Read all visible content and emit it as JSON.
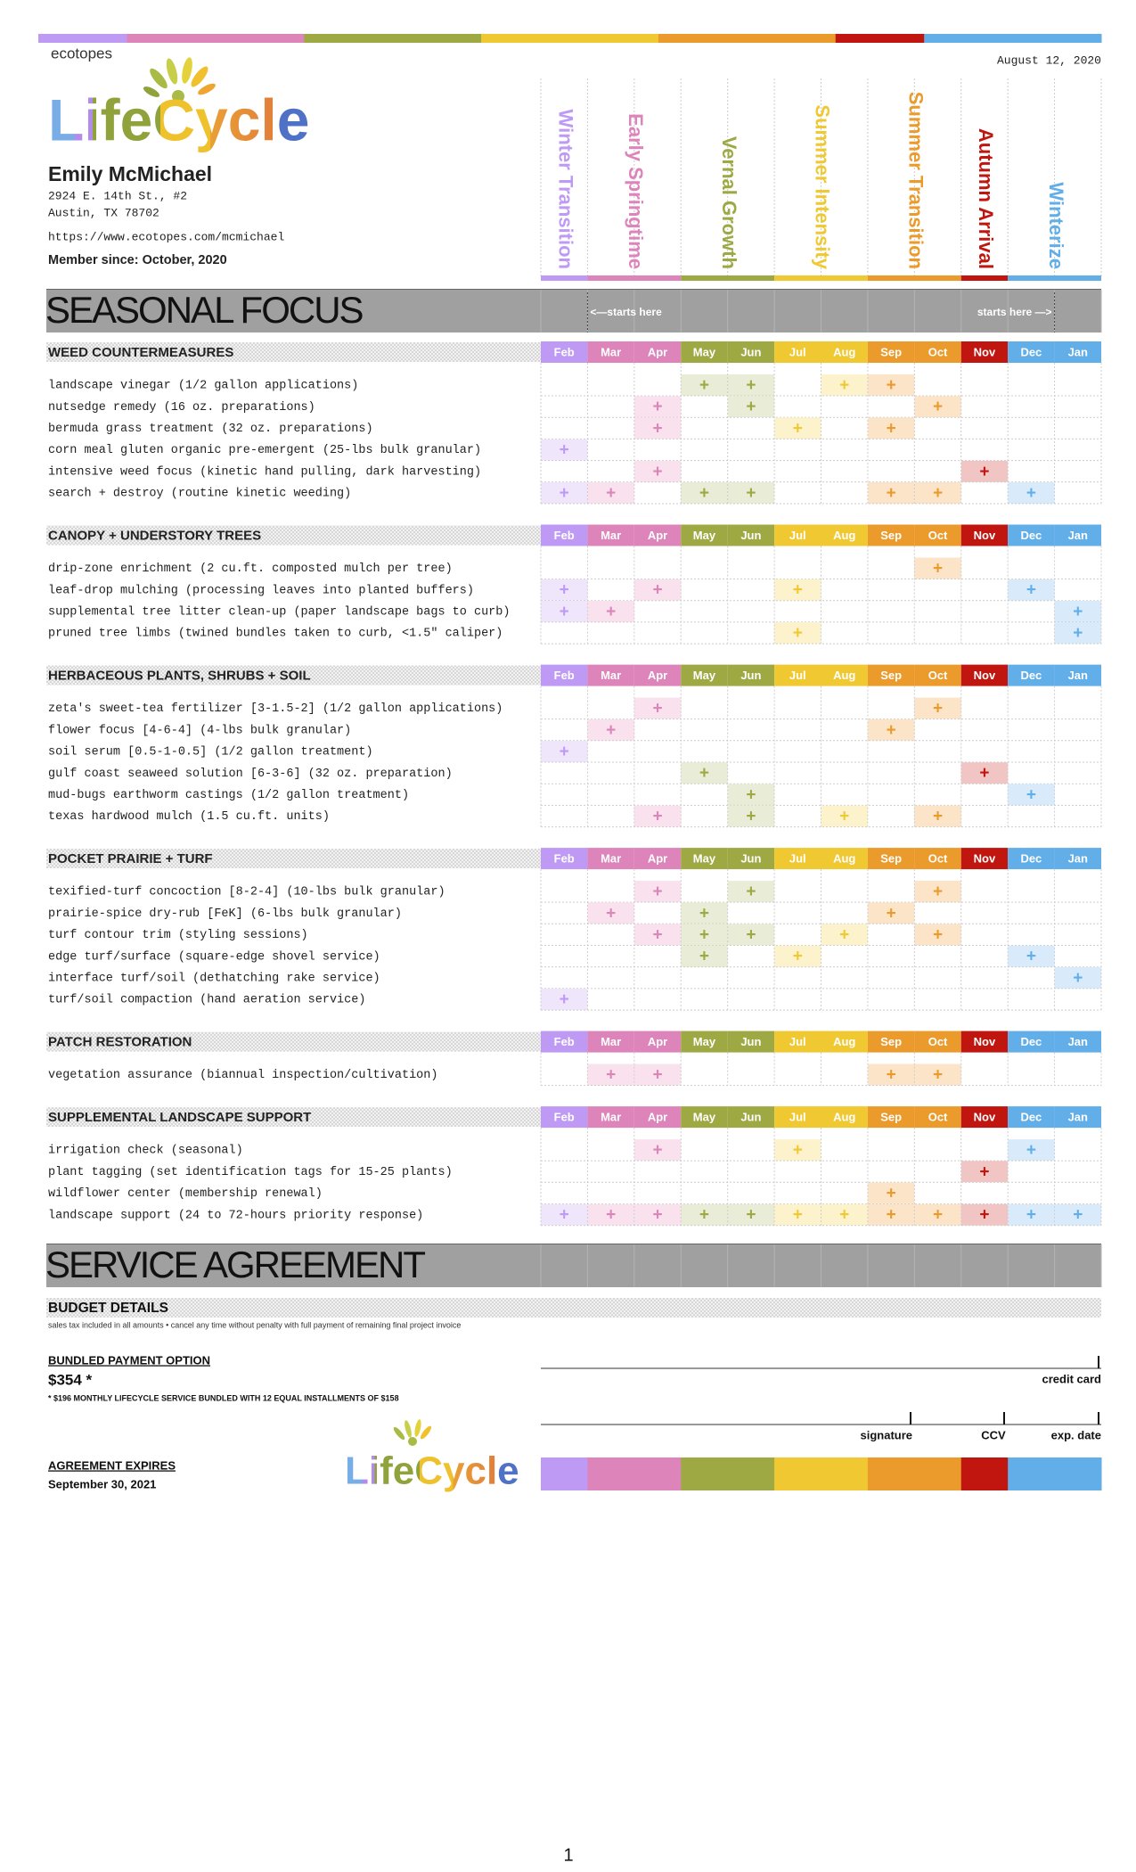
{
  "header": {
    "brand": "ecotopes",
    "logo": "LifeCycle",
    "date": "August 12, 2020",
    "name": "Emily McMichael",
    "address": [
      "2924 E. 14th St., #2",
      "Austin, TX 78702"
    ],
    "url": "https://www.ecotopes.com/mcmichael",
    "member_since": "Member since: October, 2020"
  },
  "months": [
    {
      "label": "Feb",
      "color": "#bf9af5",
      "tint": "#efe6fc"
    },
    {
      "label": "Mar",
      "color": "#dd84bb",
      "tint": "#f9e1ee"
    },
    {
      "label": "Apr",
      "color": "#dd84bb",
      "tint": "#f9e1ee"
    },
    {
      "label": "May",
      "color": "#9ea944",
      "tint": "#e9ecd6"
    },
    {
      "label": "Jun",
      "color": "#9ea944",
      "tint": "#e9ecd6"
    },
    {
      "label": "Jul",
      "color": "#f0c832",
      "tint": "#fcf2cc"
    },
    {
      "label": "Aug",
      "color": "#f0c832",
      "tint": "#fcf2cc"
    },
    {
      "label": "Sep",
      "color": "#eb9a2c",
      "tint": "#fbe4c8"
    },
    {
      "label": "Oct",
      "color": "#eb9a2c",
      "tint": "#fbe4c8"
    },
    {
      "label": "Nov",
      "color": "#c0160f",
      "tint": "#f2c5c5"
    },
    {
      "label": "Dec",
      "color": "#62aee9",
      "tint": "#d9eafa"
    },
    {
      "label": "Jan",
      "color": "#62aee9",
      "tint": "#d9eafa"
    }
  ],
  "seasons": [
    {
      "label": "Winter Transition",
      "color": "#bf9af5"
    },
    {
      "label": "Early Springtime",
      "color": "#dd84bb"
    },
    {
      "label": "Vernal Growth",
      "color": "#9ea944"
    },
    {
      "label": "Summer Intensity",
      "color": "#f0c832"
    },
    {
      "label": "Summer Transition",
      "color": "#eb9a2c"
    },
    {
      "label": "Autumn Arrival",
      "color": "#c0160f"
    },
    {
      "label": "Winterize",
      "color": "#62aee9"
    }
  ],
  "focus": {
    "title": "SEASONAL FOCUS",
    "start_left": "<—starts here",
    "start_right": "starts here —>",
    "sections": [
      {
        "title": "WEED COUNTERMEASURES",
        "rows": [
          {
            "label": "landscape vinegar (1/2 gallon applications)",
            "cells": [
              null,
              null,
              null,
              "+",
              "+",
              null,
              "+",
              "+",
              null,
              null,
              null,
              null
            ]
          },
          {
            "label": "nutsedge remedy (16 oz. preparations)",
            "cells": [
              null,
              null,
              "+",
              null,
              "+",
              null,
              null,
              null,
              "+",
              null,
              null,
              null
            ]
          },
          {
            "label": "bermuda grass treatment (32 oz. preparations)",
            "cells": [
              null,
              null,
              "+",
              null,
              null,
              "+",
              null,
              "+",
              null,
              null,
              null,
              null
            ]
          },
          {
            "label": "corn meal gluten organic pre-emergent (25-lbs bulk granular)",
            "cells": [
              "+",
              null,
              null,
              null,
              null,
              null,
              null,
              null,
              null,
              null,
              null,
              null
            ]
          },
          {
            "label": "intensive weed focus (kinetic hand pulling, dark harvesting)",
            "cells": [
              null,
              null,
              "+",
              null,
              null,
              null,
              null,
              null,
              null,
              "+",
              null,
              null
            ]
          },
          {
            "label": "search + destroy (routine kinetic weeding)",
            "cells": [
              "+",
              "+",
              null,
              "+",
              "+",
              null,
              null,
              "+",
              "+",
              null,
              "+",
              null
            ]
          }
        ]
      },
      {
        "title": "CANOPY + UNDERSTORY TREES",
        "rows": [
          {
            "label": "drip-zone enrichment (2 cu.ft. composted mulch per tree)",
            "cells": [
              null,
              null,
              null,
              null,
              null,
              null,
              null,
              null,
              "+",
              null,
              null,
              null
            ]
          },
          {
            "label": "leaf-drop mulching (processing leaves into planted buffers)",
            "cells": [
              "+",
              null,
              "+",
              null,
              null,
              "+",
              null,
              null,
              null,
              null,
              "+",
              null
            ]
          },
          {
            "label": "supplemental tree litter clean-up (paper landscape bags to curb)",
            "cells": [
              "+",
              "+",
              null,
              null,
              null,
              null,
              null,
              null,
              null,
              null,
              null,
              "+"
            ]
          },
          {
            "label": "pruned tree limbs (twined bundles taken to curb, <1.5″ caliper)",
            "cells": [
              null,
              null,
              null,
              null,
              null,
              "+",
              null,
              null,
              null,
              null,
              null,
              "+"
            ]
          }
        ]
      },
      {
        "title": "HERBACEOUS PLANTS, SHRUBS + SOIL",
        "rows": [
          {
            "label": "zeta's sweet-tea fertilizer [3-1.5-2] (1/2 gallon applications)",
            "cells": [
              null,
              null,
              "+",
              null,
              null,
              null,
              null,
              null,
              "+",
              null,
              null,
              null
            ]
          },
          {
            "label": "flower focus [4-6-4] (4-lbs bulk granular)",
            "cells": [
              null,
              "+",
              null,
              null,
              null,
              null,
              null,
              "+",
              null,
              null,
              null,
              null
            ]
          },
          {
            "label": "soil serum [0.5-1-0.5] (1/2 gallon treatment)",
            "cells": [
              "+",
              null,
              null,
              null,
              null,
              null,
              null,
              null,
              null,
              null,
              null,
              null
            ]
          },
          {
            "label": "gulf coast seaweed solution [6-3-6] (32 oz. preparation)",
            "cells": [
              null,
              null,
              null,
              "+",
              null,
              null,
              null,
              null,
              null,
              "+",
              null,
              null
            ]
          },
          {
            "label": "mud-bugs earthworm castings (1/2 gallon treatment)",
            "cells": [
              null,
              null,
              null,
              null,
              "+",
              null,
              null,
              null,
              null,
              null,
              "+",
              null
            ]
          },
          {
            "label": "texas hardwood mulch (1.5 cu.ft. units)",
            "cells": [
              null,
              null,
              "+",
              null,
              "+",
              null,
              "+",
              null,
              "+",
              null,
              null,
              null
            ]
          }
        ]
      },
      {
        "title": "POCKET PRAIRIE + TURF",
        "rows": [
          {
            "label": "texified-turf concoction [8-2-4] (10-lbs bulk granular)",
            "cells": [
              null,
              null,
              "+",
              null,
              "+",
              null,
              null,
              null,
              "+",
              null,
              null,
              null
            ]
          },
          {
            "label": "prairie-spice dry-rub [FeK] (6-lbs bulk granular)",
            "cells": [
              null,
              "+",
              null,
              "+",
              null,
              null,
              null,
              "+",
              null,
              null,
              null,
              null
            ]
          },
          {
            "label": "turf contour trim (styling sessions)",
            "cells": [
              null,
              null,
              "+",
              "+",
              "+",
              null,
              "+",
              null,
              "+",
              null,
              null,
              null
            ]
          },
          {
            "label": "edge turf/surface (square-edge shovel service)",
            "cells": [
              null,
              null,
              null,
              "+",
              null,
              "+",
              null,
              null,
              null,
              null,
              "+",
              null
            ]
          },
          {
            "label": "interface turf/soil (dethatching rake service)",
            "cells": [
              null,
              null,
              null,
              null,
              null,
              null,
              null,
              null,
              null,
              null,
              null,
              "+"
            ]
          },
          {
            "label": "turf/soil compaction (hand aeration service)",
            "cells": [
              "+",
              null,
              null,
              null,
              null,
              null,
              null,
              null,
              null,
              null,
              null,
              null
            ]
          }
        ]
      },
      {
        "title": "PATCH RESTORATION",
        "rows": [
          {
            "label": "vegetation assurance (biannual inspection/cultivation)",
            "cells": [
              null,
              "+",
              "+",
              null,
              null,
              null,
              null,
              "+",
              "+",
              null,
              null,
              null
            ]
          }
        ]
      },
      {
        "title": "SUPPLEMENTAL LANDSCAPE SUPPORT",
        "rows": [
          {
            "label": "irrigation check (seasonal)",
            "cells": [
              null,
              null,
              "+",
              null,
              null,
              "+",
              null,
              null,
              null,
              null,
              "+",
              null
            ]
          },
          {
            "label": "plant tagging (set identification tags for 15-25 plants)",
            "cells": [
              null,
              null,
              null,
              null,
              null,
              null,
              null,
              null,
              null,
              "+",
              null,
              null
            ]
          },
          {
            "label": "wildflower center (membership renewal)",
            "cells": [
              null,
              null,
              null,
              null,
              null,
              null,
              null,
              "+",
              null,
              null,
              null,
              null
            ]
          },
          {
            "label": "landscape support (24 to 72-hours priority response)",
            "cells": [
              "+",
              "+",
              "+",
              "+",
              "+",
              "+",
              "+",
              "+",
              "+",
              "+",
              "+",
              "+"
            ]
          }
        ]
      }
    ]
  },
  "agreement": {
    "title": "SERVICE AGREEMENT",
    "budget_title": "BUDGET DETAILS",
    "budget_note": "sales tax included in all amounts • cancel any time without penalty with full payment of remaining final project invoice",
    "bundled_title": "BUNDLED PAYMENT OPTION",
    "price": "$354 *",
    "price_note": "* $196 MONTHLY LIFECYCLE SERVICE BUNDLED WITH 12 EQUAL INSTALLMENTS OF $158",
    "credit_card": "credit card",
    "signature": "signature",
    "ccv": "CCV",
    "exp": "exp. date",
    "expires_title": "AGREEMENT EXPIRES",
    "expires_date": "September 30, 2021",
    "logo": "LifeCycle"
  },
  "page_number": "1"
}
